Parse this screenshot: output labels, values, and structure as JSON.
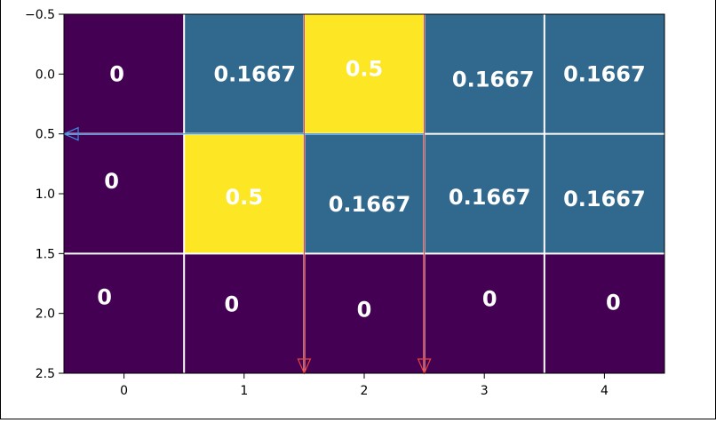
{
  "chart_data": {
    "type": "heatmap",
    "colormap": "viridis",
    "rows": [
      0,
      1,
      2
    ],
    "columns": [
      0,
      1,
      2,
      3,
      4
    ],
    "values": [
      [
        0,
        0.1667,
        0.5,
        0.1667,
        0.1667
      ],
      [
        0,
        0.5,
        0.1667,
        0.1667,
        0.1667
      ],
      [
        0,
        0,
        0,
        0,
        0
      ]
    ],
    "cell_labels": [
      [
        "0",
        "0.1667",
        "0.5",
        "0.1667",
        "0.1667"
      ],
      [
        "0",
        "0.5",
        "0.1667",
        "0.1667",
        "0.1667"
      ],
      [
        "0",
        "0",
        "0",
        "0",
        "0"
      ]
    ],
    "xlim": [
      -0.5,
      4.5
    ],
    "ylim": [
      2.5,
      -0.5
    ],
    "xticks": [
      "0",
      "1",
      "2",
      "3",
      "4"
    ],
    "yticks": [
      "−0.5",
      "0.0",
      "0.5",
      "1.0",
      "1.5",
      "2.0",
      "2.5"
    ],
    "ytick_values": [
      -0.5,
      0,
      0.5,
      1,
      1.5,
      2,
      2.5
    ],
    "grid": "white cell borders",
    "colors": {
      "low": "#440154",
      "mid": "#31688e",
      "high": "#fde725",
      "grid": "#ffffff",
      "arrow_red": "#e8423a",
      "arrow_blue": "#3a8fe0",
      "label": "#ffffff"
    },
    "arrows": [
      {
        "from": [
          1.5,
          -0.5
        ],
        "to": [
          1.5,
          2.5
        ],
        "color": "red"
      },
      {
        "from": [
          2.5,
          -0.5
        ],
        "to": [
          2.5,
          2.5
        ],
        "color": "red"
      },
      {
        "from": [
          2.5,
          0.5
        ],
        "to": [
          -0.5,
          0.5
        ],
        "color": "blue"
      }
    ]
  }
}
